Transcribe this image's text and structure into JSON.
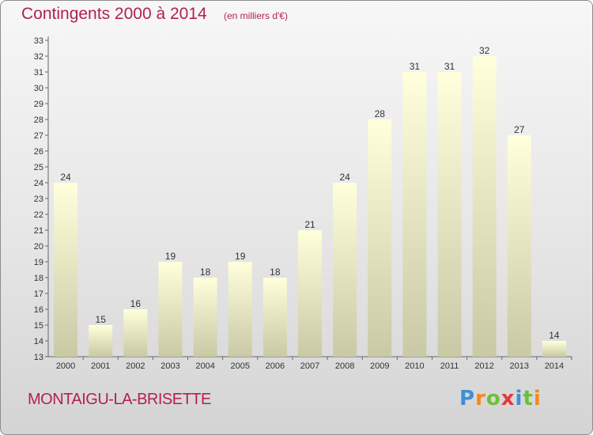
{
  "title": "Contingents 2000 à 2014",
  "subtitle": "(en milliers d'€)",
  "commune": "MONTAIGU-LA-BRISETTE",
  "logo": {
    "letters": [
      "P",
      "r",
      "o",
      "x",
      "i",
      "t",
      "i"
    ],
    "colors": [
      "#3d8fd6",
      "#f08a1c",
      "#6cbf3a",
      "#e03a3a",
      "#3d8fd6",
      "#6cbf3a",
      "#f08a1c"
    ]
  },
  "colors": {
    "title": "#b31f56",
    "bar_top": "#ffffdc",
    "bar_bottom": "#c9c9a6",
    "axis_text": "#333333"
  },
  "chart_data": {
    "type": "bar",
    "categories": [
      "2000",
      "2001",
      "2002",
      "2003",
      "2004",
      "2005",
      "2006",
      "2007",
      "2008",
      "2009",
      "2010",
      "2011",
      "2012",
      "2013",
      "2014"
    ],
    "values": [
      24,
      15,
      16,
      19,
      18,
      19,
      18,
      21,
      24,
      28,
      31,
      31,
      32,
      27,
      14
    ],
    "title": "Contingents 2000 à 2014",
    "ylim": [
      13,
      33
    ],
    "yticks": [
      13,
      14,
      15,
      16,
      17,
      18,
      19,
      20,
      21,
      22,
      23,
      24,
      25,
      26,
      27,
      28,
      29,
      30,
      31,
      32,
      33
    ],
    "grid": false,
    "data_labels": true
  }
}
